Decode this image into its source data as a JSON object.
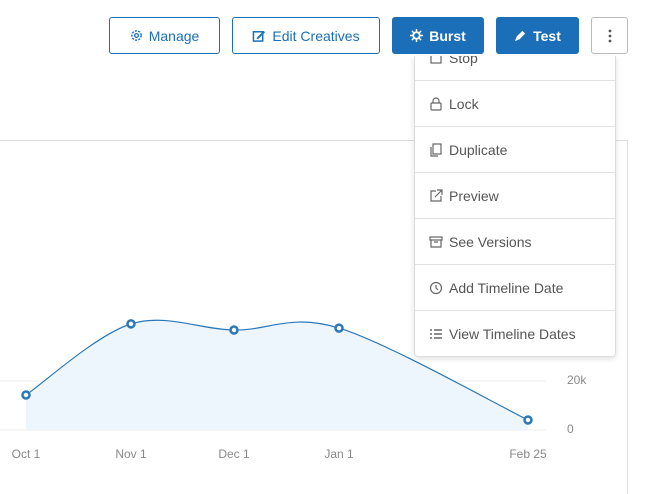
{
  "toolbar": {
    "buttons": [
      "Manage",
      "Edit Creatives",
      "Burst",
      "Test"
    ]
  },
  "menu": {
    "items": [
      "Stop",
      "Lock",
      "Duplicate",
      "Preview",
      "See Versions",
      "Add Timeline Date",
      "View Timeline Dates"
    ]
  },
  "chart_data": {
    "type": "area",
    "categories": [
      "Oct 1",
      "Nov 1",
      "Dec 1",
      "Jan 1",
      "Feb 25"
    ],
    "series": [
      {
        "color": "#2b78b8",
        "values": [
          14300,
          43300,
          40800,
          41600,
          4100
        ]
      }
    ],
    "ylim": [
      0,
      80000
    ],
    "yticks": [
      0,
      {
        "value": 20000,
        "label": "20k"
      }
    ],
    "grid": true
  }
}
